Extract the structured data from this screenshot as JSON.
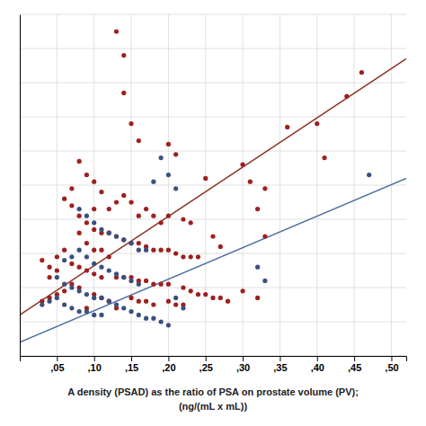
{
  "chart_data": {
    "type": "scatter",
    "xlabel": [
      "A density (PSAD) as the ratio of PSA on prostate volume (PV);",
      "(ng/(mL x mL))"
    ],
    "xlim": [
      0.0,
      0.52
    ],
    "ylim": [
      0.0,
      1.0
    ],
    "xticks": [
      {
        "value": 0.05,
        "label": ",05"
      },
      {
        "value": 0.1,
        "label": ",10"
      },
      {
        "value": 0.15,
        "label": ",15"
      },
      {
        "value": 0.2,
        "label": ",20"
      },
      {
        "value": 0.25,
        "label": ",25"
      },
      {
        "value": 0.3,
        "label": ",30"
      },
      {
        "value": 0.35,
        "label": ",35"
      },
      {
        "value": 0.4,
        "label": ",40"
      },
      {
        "value": 0.45,
        "label": ",45"
      },
      {
        "value": 0.5,
        "label": ",50"
      }
    ],
    "yticks": [
      0.0,
      0.1,
      0.2,
      0.3,
      0.4,
      0.5,
      0.6,
      0.7,
      0.8,
      0.9,
      1.0
    ],
    "grid": true,
    "tick_labels": "x",
    "series": [
      {
        "type": "line",
        "color": "#8b3020",
        "x": [
          0.0,
          0.52
        ],
        "values": [
          0.12,
          0.87
        ]
      },
      {
        "type": "line",
        "color": "#5070a0",
        "x": [
          0.0,
          0.52
        ],
        "values": [
          0.04,
          0.52
        ]
      },
      {
        "type": "scatter",
        "color": "#9e2020",
        "x": [
          0.13,
          0.14,
          0.14,
          0.15,
          0.16,
          0.2,
          0.21,
          0.25,
          0.3,
          0.31,
          0.33,
          0.36,
          0.08,
          0.09,
          0.1,
          0.07,
          0.11,
          0.14,
          0.15,
          0.13,
          0.17,
          0.18,
          0.12,
          0.1,
          0.16,
          0.2,
          0.22,
          0.23,
          0.19,
          0.06,
          0.07,
          0.08,
          0.09,
          0.1,
          0.11,
          0.12,
          0.13,
          0.14,
          0.15,
          0.16,
          0.17,
          0.18,
          0.19,
          0.2,
          0.21,
          0.22,
          0.23,
          0.24,
          0.08,
          0.09,
          0.1,
          0.11,
          0.12,
          0.06,
          0.05,
          0.07,
          0.08,
          0.09,
          0.1,
          0.11,
          0.13,
          0.14,
          0.15,
          0.16,
          0.17,
          0.18,
          0.19,
          0.2,
          0.22,
          0.23,
          0.07,
          0.08,
          0.06,
          0.05,
          0.04,
          0.03,
          0.04,
          0.05,
          0.24,
          0.25,
          0.26,
          0.27,
          0.28,
          0.3,
          0.32,
          0.2,
          0.21,
          0.22,
          0.15,
          0.16,
          0.17,
          0.18,
          0.12,
          0.11,
          0.1,
          0.13,
          0.09,
          0.44,
          0.46,
          0.4,
          0.41,
          0.32,
          0.33,
          0.26,
          0.27,
          0.03,
          0.04
        ],
        "values": [
          0.95,
          0.88,
          0.77,
          0.68,
          0.63,
          0.62,
          0.59,
          0.52,
          0.56,
          0.51,
          0.49,
          0.67,
          0.57,
          0.53,
          0.51,
          0.49,
          0.48,
          0.47,
          0.45,
          0.45,
          0.43,
          0.41,
          0.43,
          0.43,
          0.41,
          0.41,
          0.4,
          0.39,
          0.39,
          0.46,
          0.44,
          0.41,
          0.39,
          0.37,
          0.36,
          0.36,
          0.35,
          0.34,
          0.33,
          0.33,
          0.32,
          0.31,
          0.31,
          0.31,
          0.3,
          0.29,
          0.29,
          0.29,
          0.36,
          0.33,
          0.31,
          0.31,
          0.29,
          0.31,
          0.29,
          0.27,
          0.26,
          0.25,
          0.24,
          0.23,
          0.23,
          0.23,
          0.23,
          0.22,
          0.22,
          0.21,
          0.21,
          0.21,
          0.2,
          0.19,
          0.21,
          0.2,
          0.19,
          0.18,
          0.17,
          0.16,
          0.23,
          0.25,
          0.18,
          0.18,
          0.17,
          0.17,
          0.16,
          0.19,
          0.17,
          0.16,
          0.15,
          0.15,
          0.17,
          0.16,
          0.16,
          0.15,
          0.16,
          0.17,
          0.18,
          0.14,
          0.14,
          0.76,
          0.83,
          0.68,
          0.58,
          0.43,
          0.35,
          0.35,
          0.32,
          0.28,
          0.26
        ]
      },
      {
        "type": "scatter",
        "color": "#3a5080",
        "x": [
          0.19,
          0.2,
          0.18,
          0.21,
          0.08,
          0.09,
          0.1,
          0.11,
          0.12,
          0.13,
          0.14,
          0.15,
          0.16,
          0.17,
          0.08,
          0.07,
          0.06,
          0.09,
          0.1,
          0.11,
          0.12,
          0.13,
          0.14,
          0.15,
          0.16,
          0.05,
          0.06,
          0.07,
          0.08,
          0.09,
          0.1,
          0.11,
          0.12,
          0.13,
          0.14,
          0.05,
          0.04,
          0.03,
          0.06,
          0.07,
          0.08,
          0.09,
          0.1,
          0.11,
          0.15,
          0.16,
          0.17,
          0.18,
          0.19,
          0.2,
          0.47,
          0.32,
          0.33,
          0.21,
          0.22
        ],
        "values": [
          0.58,
          0.53,
          0.51,
          0.49,
          0.43,
          0.41,
          0.39,
          0.37,
          0.36,
          0.35,
          0.34,
          0.33,
          0.31,
          0.31,
          0.31,
          0.29,
          0.28,
          0.29,
          0.27,
          0.26,
          0.25,
          0.24,
          0.23,
          0.22,
          0.21,
          0.23,
          0.21,
          0.2,
          0.19,
          0.18,
          0.17,
          0.17,
          0.16,
          0.15,
          0.14,
          0.17,
          0.16,
          0.15,
          0.15,
          0.14,
          0.13,
          0.13,
          0.12,
          0.12,
          0.13,
          0.12,
          0.11,
          0.11,
          0.1,
          0.09,
          0.53,
          0.26,
          0.22,
          0.17,
          0.14
        ]
      }
    ]
  }
}
